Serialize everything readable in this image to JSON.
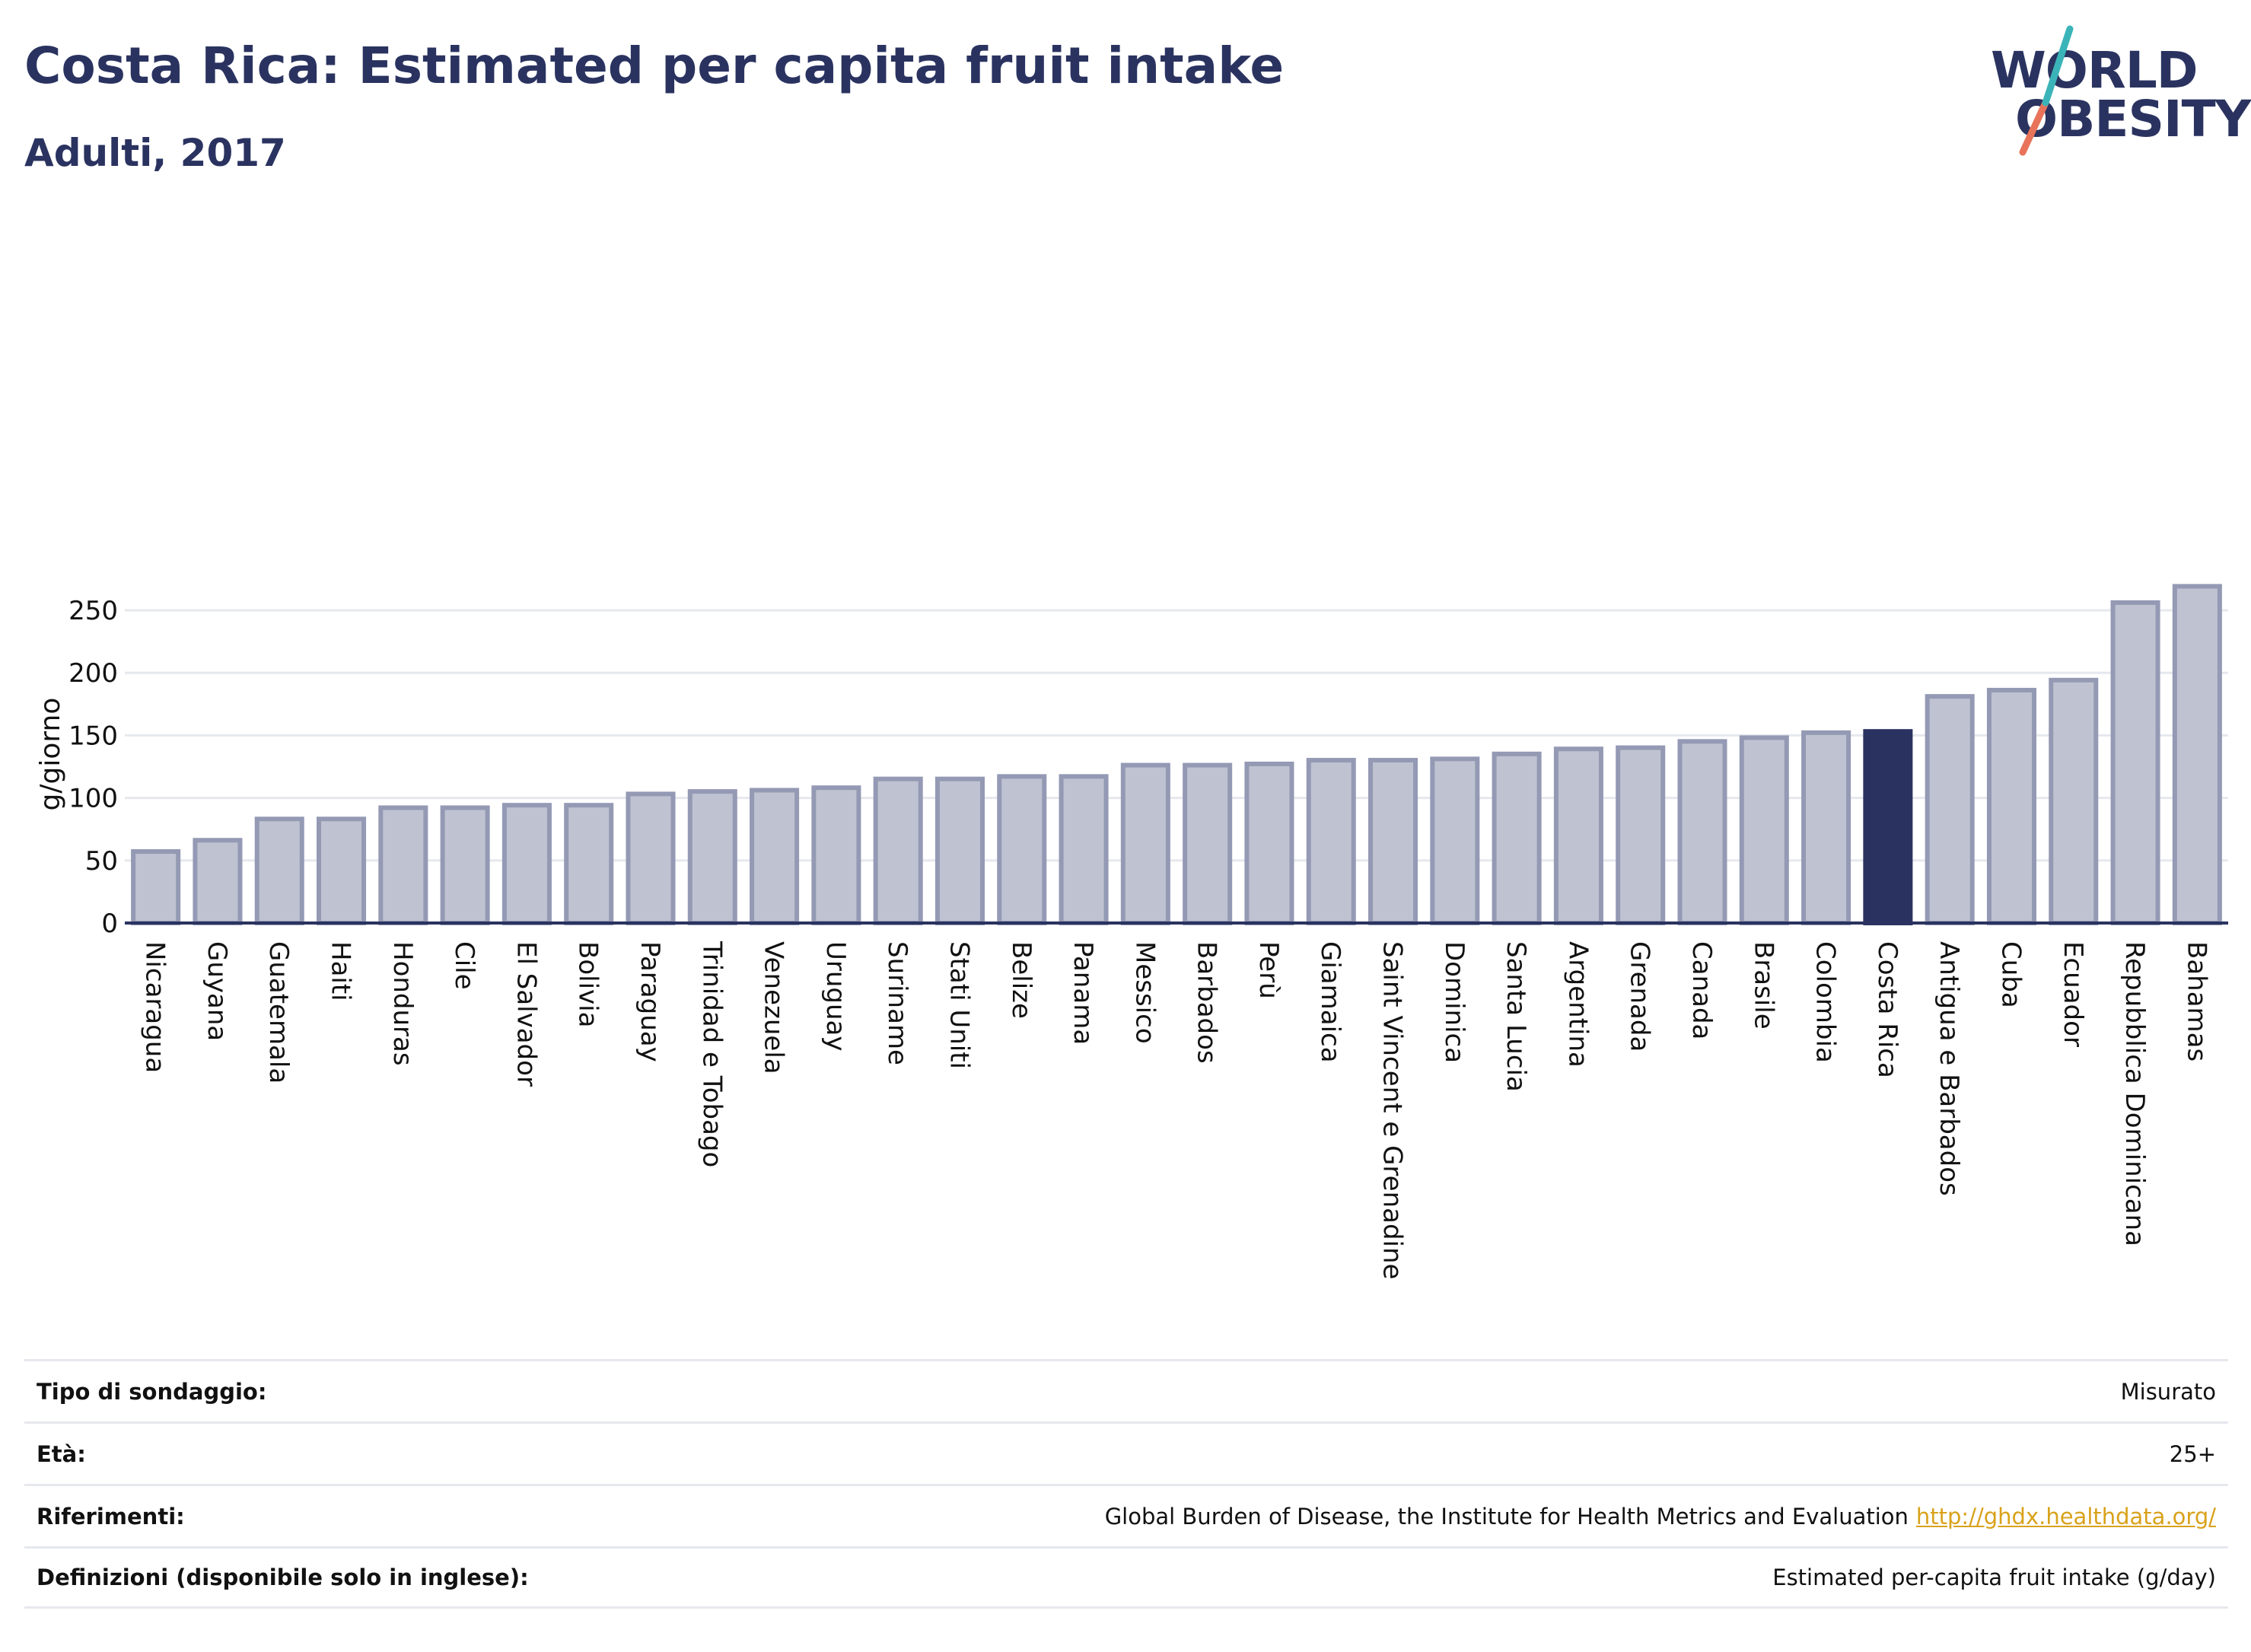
{
  "title": "Costa Rica: Estimated per capita fruit intake",
  "subtitle": "Adulti, 2017",
  "logo": {
    "line1": "WORLD",
    "line2": "OBESITY"
  },
  "colors": {
    "bar": "#bfc3d1",
    "bar_edge": "#9499b4",
    "highlight": "#2a3360",
    "grid": "#e6e8ee",
    "axis": "#2a3360",
    "logo_teal": "#3ab4b8",
    "logo_coral": "#e8735a"
  },
  "chart_data": {
    "type": "bar",
    "title": "Costa Rica: Estimated per capita fruit intake",
    "subtitle": "Adulti, 2017",
    "xlabel": "",
    "ylabel": "g/giorno",
    "ylim": [
      0,
      280
    ],
    "yticks": [
      0,
      50,
      100,
      150,
      200,
      250
    ],
    "grid": true,
    "highlight": "Costa Rica",
    "categories": [
      "Nicaragua",
      "Guyana",
      "Guatemala",
      "Haiti",
      "Honduras",
      "Cile",
      "El Salvador",
      "Bolivia",
      "Paraguay",
      "Trinidad e Tobago",
      "Venezuela",
      "Uruguay",
      "Suriname",
      "Stati Uniti",
      "Belize",
      "Panama",
      "Messico",
      "Barbados",
      "Perù",
      "Giamaica",
      "Saint Vincent e Grenadine",
      "Dominica",
      "Santa Lucia",
      "Argentina",
      "Grenada",
      "Canada",
      "Brasile",
      "Colombia",
      "Costa Rica",
      "Antigua e Barbados",
      "Cuba",
      "Ecuador",
      "Repubblica Dominicana",
      "Bahamas"
    ],
    "values": [
      59,
      68,
      85,
      85,
      94,
      94,
      96,
      96,
      105,
      107,
      108,
      110,
      117,
      117,
      119,
      119,
      128,
      128,
      129,
      132,
      132,
      133,
      137,
      141,
      142,
      147,
      150,
      154,
      155,
      183,
      188,
      196,
      258,
      271
    ]
  },
  "info": [
    {
      "label": "Tipo di sondaggio:",
      "value": "Misurato"
    },
    {
      "label": "Età:",
      "value": "25+"
    },
    {
      "label": "Riferimenti:",
      "value": "Global Burden of Disease, the Institute for Health Metrics and Evaluation",
      "link": "http://ghdx.healthdata.org/"
    },
    {
      "label": "Definizioni (disponibile solo in inglese):",
      "value": "Estimated per-capita fruit intake (g/day)"
    }
  ]
}
